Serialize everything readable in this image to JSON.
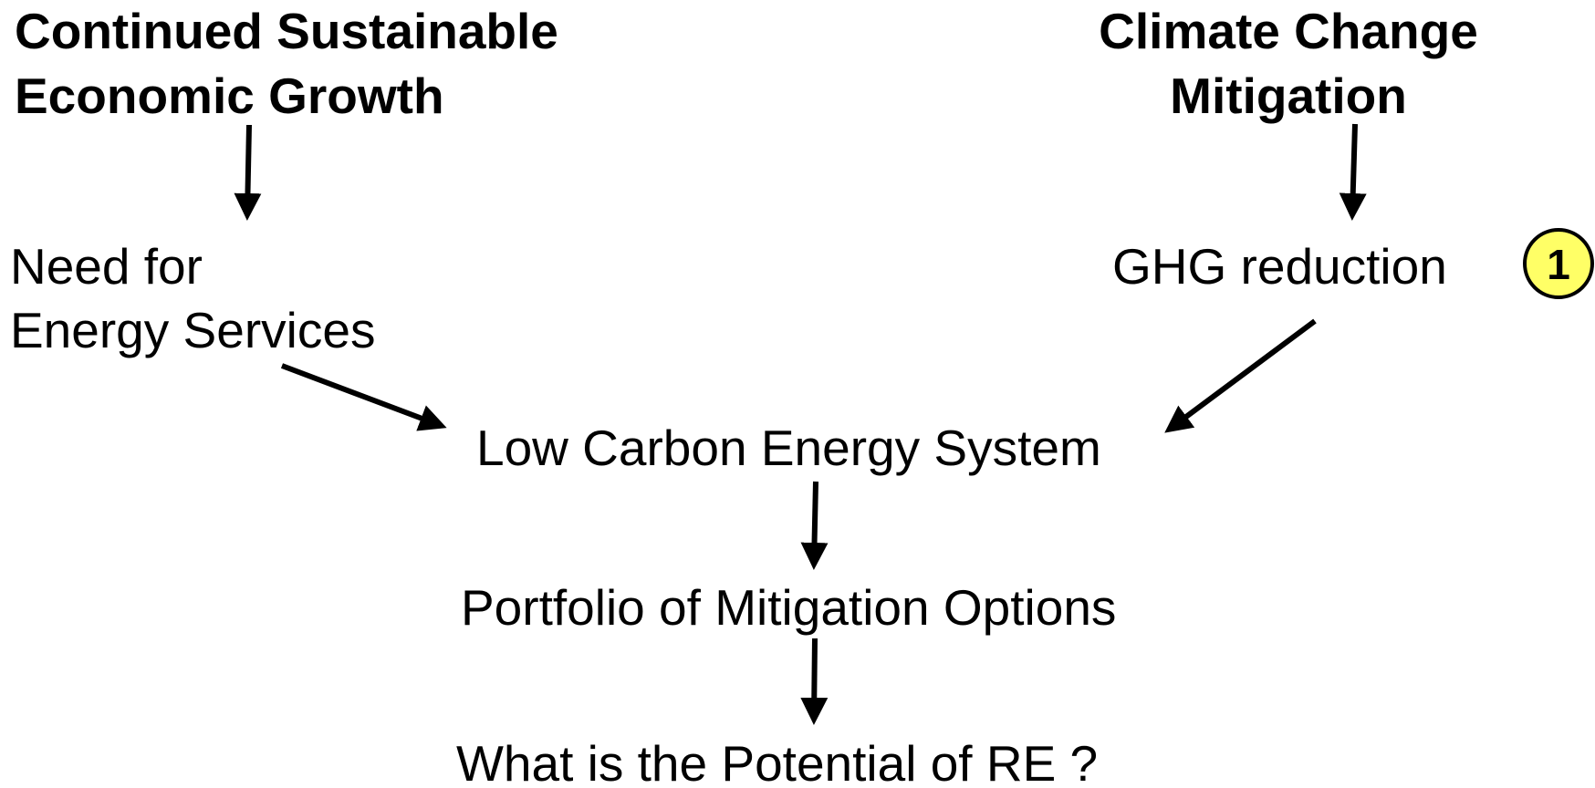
{
  "nodes": [
    {
      "lines": [
        "Continued Sustainable",
        "Economic Growth"
      ]
    },
    {
      "lines": [
        "Climate Change",
        "Mitigation"
      ]
    },
    {
      "lines": [
        "Need for",
        "Energy Services"
      ]
    },
    {
      "lines": [
        "GHG reduction"
      ]
    },
    {
      "lines": [
        "Low Carbon Energy System"
      ]
    },
    {
      "lines": [
        "Portfolio of Mitigation Options"
      ]
    },
    {
      "lines": [
        "What is the Potential of RE ?"
      ]
    }
  ],
  "badge": "1"
}
